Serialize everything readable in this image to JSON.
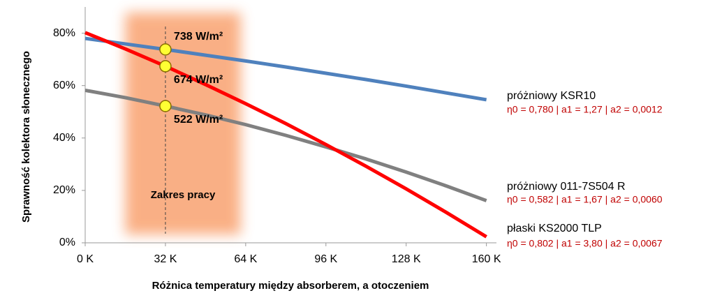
{
  "chart_data": {
    "type": "line",
    "x_label": "Różnica temperatury między absorberem, a otoczeniem",
    "y_label": "Sprawność kolektora słonecznego",
    "x": [
      0,
      16,
      32,
      48,
      64,
      80,
      96,
      112,
      128,
      144,
      160
    ],
    "series": [
      {
        "name": "próżniowy KSR10",
        "note": "η0 = 0,780 | a1 = 1,27 | a2 = 0,0012",
        "color": "#4f81bd",
        "values": [
          78.0,
          75.9,
          73.8,
          71.6,
          69.4,
          67.1,
          64.7,
          62.3,
          59.8,
          57.2,
          54.6
        ]
      },
      {
        "name": "próżniowy 011-7S504 R",
        "note": "η0 = 0,582 | a1 = 1,67 | a2 = 0,0060",
        "color": "#808080",
        "values": [
          58.2,
          55.4,
          52.2,
          48.8,
          45.1,
          41.0,
          36.6,
          32.0,
          27.0,
          21.7,
          16.1
        ]
      },
      {
        "name": "płaski KS2000 TLP",
        "note": "η0 = 0,802 | a1 = 3,80 | a2 = 0,0067",
        "color": "#ff0000",
        "values": [
          80.2,
          74.0,
          67.4,
          60.4,
          53.1,
          45.5,
          37.5,
          29.2,
          20.6,
          11.6,
          2.3
        ]
      }
    ],
    "markers": [
      {
        "x": 32,
        "y": 73.8,
        "label": "738 W/m²"
      },
      {
        "x": 32,
        "y": 67.4,
        "label": "674 W/m²"
      },
      {
        "x": 32,
        "y": 52.2,
        "label": "522 W/m²"
      }
    ],
    "region": {
      "label": "Zakres pracy",
      "x": [
        16,
        62
      ]
    },
    "xlim": [
      0,
      164
    ],
    "ylim": [
      0,
      90
    ],
    "xticks": [
      {
        "value": 0,
        "label": "0 K"
      },
      {
        "value": 32,
        "label": "32 K"
      },
      {
        "value": 64,
        "label": "64 K"
      },
      {
        "value": 96,
        "label": "96 K"
      },
      {
        "value": 128,
        "label": "128 K"
      },
      {
        "value": 160,
        "label": "160 K"
      }
    ],
    "yticks": [
      {
        "value": 0,
        "label": "0%"
      },
      {
        "value": 20,
        "label": "20%"
      },
      {
        "value": 40,
        "label": "40%"
      },
      {
        "value": 60,
        "label": "60%"
      },
      {
        "value": 80,
        "label": "80%"
      }
    ]
  }
}
